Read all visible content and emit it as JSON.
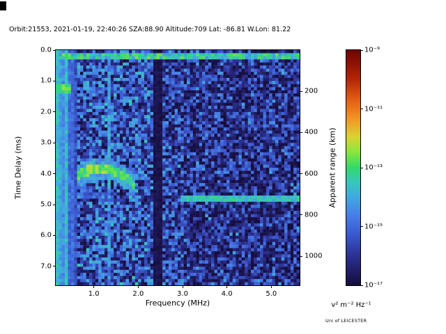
{
  "title": "Orbit:21553, 2021-01-19, 22:40:26 SZA:88.90 Altitude:709 Lat: -86.81 W.Lon: 81.22",
  "credit": "Uni of LEICESTER",
  "chart_data": {
    "type": "heatmap",
    "title": "Orbit:21553, 2021-01-19, 22:40:26 SZA:88.90 Altitude:709 Lat: -86.81 W.Lon: 81.22",
    "xlabel": "Frequency (MHz)",
    "ylabel": "Time Delay (ms)",
    "y2label": "Apparent range (km)",
    "colorbar_label": "v² m⁻² Hz⁻¹",
    "x_range_mhz": [
      0.14,
      5.64
    ],
    "y_range_ms": [
      0.0,
      7.61
    ],
    "km_per_ms": 150,
    "grid_lines": "off",
    "x_ticks": [
      {
        "v": 1.0,
        "label": "1.0"
      },
      {
        "v": 2.0,
        "label": "2.0"
      },
      {
        "v": 3.0,
        "label": "3.0"
      },
      {
        "v": 4.0,
        "label": "4.0"
      },
      {
        "v": 5.0,
        "label": "5.0"
      }
    ],
    "y_ticks": [
      {
        "v": 0.0,
        "label": "0.0"
      },
      {
        "v": 1.0,
        "label": "1.0"
      },
      {
        "v": 2.0,
        "label": "2.0"
      },
      {
        "v": 3.0,
        "label": "3.0"
      },
      {
        "v": 4.0,
        "label": "4.0"
      },
      {
        "v": 5.0,
        "label": "5.0"
      },
      {
        "v": 6.0,
        "label": "6.0"
      },
      {
        "v": 7.0,
        "label": "7.0"
      }
    ],
    "y2_ticks_km": [
      {
        "v": 200,
        "label": "200"
      },
      {
        "v": 400,
        "label": "400"
      },
      {
        "v": 600,
        "label": "600"
      },
      {
        "v": 800,
        "label": "800"
      },
      {
        "v": 1000,
        "label": "1000"
      }
    ],
    "colorbar": {
      "vmin_log10": -17,
      "vmax_log10": -9,
      "scale": "log",
      "ticks": [
        {
          "v": -9,
          "label": "10⁻⁹"
        },
        {
          "v": -11,
          "label": "10⁻¹¹"
        },
        {
          "v": -13,
          "label": "10⁻¹³"
        },
        {
          "v": -15,
          "label": "10⁻¹⁵"
        },
        {
          "v": -17,
          "label": "10⁻¹⁷"
        }
      ]
    },
    "grid": {
      "cols": 80,
      "rows": 76
    },
    "colormap": {
      "stops": [
        {
          "p": 0.0,
          "c": "#150d3e"
        },
        {
          "p": 0.12,
          "c": "#2b2f8e"
        },
        {
          "p": 0.22,
          "c": "#3b5ad1"
        },
        {
          "p": 0.3,
          "c": "#4680e8"
        },
        {
          "p": 0.38,
          "c": "#41abdd"
        },
        {
          "p": 0.44,
          "c": "#35c8bb"
        },
        {
          "p": 0.5,
          "c": "#32d96b"
        },
        {
          "p": 0.57,
          "c": "#8fe63b"
        },
        {
          "p": 0.63,
          "c": "#d9d42f"
        },
        {
          "p": 0.7,
          "c": "#f09c26"
        },
        {
          "p": 0.79,
          "c": "#e55c13"
        },
        {
          "p": 0.88,
          "c": "#b32408"
        },
        {
          "p": 1.0,
          "c": "#6e0402"
        }
      ]
    },
    "noise": {
      "seed": 1337,
      "regions": [
        {
          "f0": 0.14,
          "f1": 2.33,
          "base": -17.0,
          "range": 3.1,
          "pow": 1.15,
          "spark_p": 0.08,
          "spark_base": -14.4,
          "spark_range": 1.0
        },
        {
          "f0": 2.33,
          "f1": 2.56,
          "base": -17.0,
          "range": 1.2,
          "pow": 2.0,
          "spark_p": 0.0,
          "spark_base": -15.0,
          "spark_range": 0.0
        },
        {
          "f0": 2.56,
          "f1": 3.02,
          "base": -17.0,
          "range": 2.8,
          "pow": 1.3,
          "spark_p": 0.06,
          "spark_base": -14.6,
          "spark_range": 0.9
        },
        {
          "f0": 3.02,
          "f1": 5.64,
          "base": -17.0,
          "range": 2.4,
          "pow": 1.6,
          "spark_p": 0.04,
          "spark_base": -14.8,
          "spark_range": 0.8
        }
      ],
      "left_stripes": {
        "f_max": 0.6,
        "base": -17.0,
        "gain": 3.1,
        "jitter": 0.8,
        "first_col_gain": 0.95
      }
    },
    "features": [
      {
        "name": "dark-interference-band",
        "type": "vband",
        "f0": 2.33,
        "f1": 2.56,
        "mode": "set",
        "base": -17.0,
        "spread": 0.4
      },
      {
        "name": "top-delay-band",
        "type": "hband",
        "t0": 0.12,
        "t1": 0.34,
        "base": -14.3,
        "spread": 1.7
      },
      {
        "name": "local-plasma-blob",
        "type": "rect",
        "f0": 0.14,
        "f1": 0.5,
        "t0": 1.08,
        "t1": 1.4,
        "base": -13.4,
        "spread": 1.0
      },
      {
        "name": "cyan-vertical-line",
        "type": "vband",
        "f0": 1.31,
        "f1": 1.4,
        "mode": "max",
        "base": -15.2,
        "spread": 1.6
      },
      {
        "name": "ionospheric-echo-trace",
        "type": "trace",
        "fmin": 0.62,
        "fmax": 1.9,
        "f_vertex": 1.15,
        "t_vertex": 3.82,
        "curvature": 0.95,
        "halfwidth": 0.16,
        "base": -13.6,
        "spread": 1.1,
        "core_boost": 0.4,
        "core_f0": 0.85,
        "core_f1": 1.4
      },
      {
        "name": "surface-echo-line",
        "type": "hline",
        "t": 4.85,
        "halfwidth": 0.1,
        "f0": 2.95,
        "f1": 5.64,
        "base": -14.1,
        "spread": 1.0
      }
    ]
  }
}
